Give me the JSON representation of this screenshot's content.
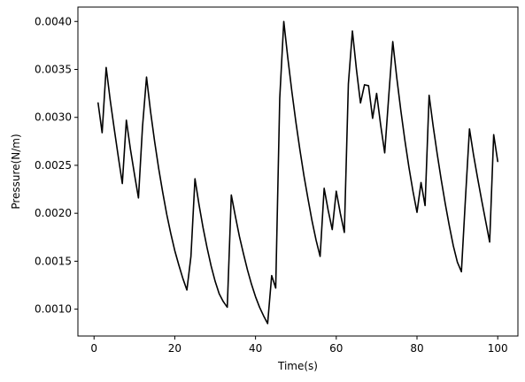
{
  "chart_data": {
    "type": "line",
    "title": "",
    "xlabel": "Time(s)",
    "ylabel": "Pressure(N/m)",
    "xlim": [
      -4,
      105
    ],
    "ylim": [
      0.00072,
      0.00415
    ],
    "grid": false,
    "line_color": "#000000",
    "xticks": [
      0,
      20,
      40,
      60,
      80,
      100
    ],
    "xtick_labels": [
      "0",
      "20",
      "40",
      "60",
      "80",
      "100"
    ],
    "yticks": [
      0.001,
      0.0015,
      0.002,
      0.0025,
      0.003,
      0.0035,
      0.004
    ],
    "ytick_labels": [
      "0.0010",
      "0.0015",
      "0.0020",
      "0.0025",
      "0.0030",
      "0.0035",
      "0.0040"
    ],
    "series": [
      {
        "x": [
          1,
          2,
          3,
          4,
          5,
          6,
          7,
          8,
          9,
          10,
          11,
          12,
          13,
          14,
          15,
          16,
          17,
          18,
          19,
          20,
          21,
          22,
          23,
          24,
          25,
          26,
          27,
          28,
          29,
          30,
          31,
          32,
          33,
          34,
          35,
          36,
          37,
          38,
          39,
          40,
          41,
          42,
          43,
          44,
          45,
          46,
          47,
          48,
          49,
          50,
          51,
          52,
          53,
          54,
          55,
          56,
          57,
          58,
          59,
          60,
          61,
          62,
          63,
          64,
          65,
          66,
          67,
          68,
          69,
          70,
          71,
          72,
          73,
          74,
          75,
          76,
          77,
          78,
          79,
          80,
          81,
          82,
          83,
          84,
          85,
          86,
          87,
          88,
          89,
          90,
          91,
          92,
          93,
          94,
          95,
          96,
          97,
          98,
          99,
          100
        ],
        "y": [
          0.00315,
          0.00284,
          0.00352,
          0.00318,
          0.00288,
          0.00259,
          0.00231,
          0.00297,
          0.00267,
          0.00241,
          0.00216,
          0.0029,
          0.00342,
          0.00306,
          0.00275,
          0.00247,
          0.00222,
          0.00199,
          0.00179,
          0.00161,
          0.00146,
          0.00132,
          0.0012,
          0.00155,
          0.00236,
          0.00209,
          0.00185,
          0.00164,
          0.00145,
          0.00129,
          0.00116,
          0.00108,
          0.00102,
          0.00219,
          0.00197,
          0.00176,
          0.00158,
          0.00141,
          0.00126,
          0.00113,
          0.00102,
          0.00093,
          0.00085,
          0.00135,
          0.00122,
          0.0032,
          0.004,
          0.00362,
          0.00327,
          0.00295,
          0.00266,
          0.00239,
          0.00215,
          0.00192,
          0.00172,
          0.00155,
          0.00226,
          0.00203,
          0.00183,
          0.00223,
          0.002,
          0.0018,
          0.00335,
          0.0039,
          0.0035,
          0.00315,
          0.00334,
          0.00333,
          0.00299,
          0.00325,
          0.00292,
          0.00263,
          0.00322,
          0.00379,
          0.00341,
          0.00307,
          0.00276,
          0.00248,
          0.00223,
          0.00201,
          0.00232,
          0.00208,
          0.00323,
          0.00291,
          0.00262,
          0.00235,
          0.0021,
          0.00187,
          0.00166,
          0.00149,
          0.00139,
          0.00215,
          0.00288,
          0.00261,
          0.00237,
          0.00214,
          0.00192,
          0.0017,
          0.00282,
          0.00254
        ]
      }
    ]
  }
}
